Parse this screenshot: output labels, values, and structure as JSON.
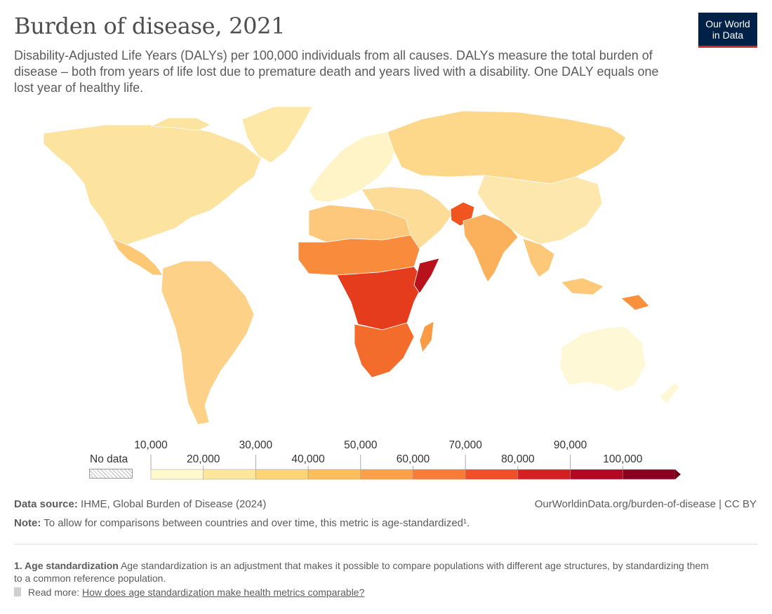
{
  "header": {
    "title": "Burden of disease, 2021",
    "subtitle": "Disability-Adjusted Life Years (DALYs) per 100,000 individuals from all causes. DALYs measure the total burden of disease – both from years of life lost due to premature death and years lived with a disability. One DALY equals one lost year of healthy life.",
    "logo_line1": "Our World",
    "logo_line2": "in Data"
  },
  "legend": {
    "no_data_label": "No data",
    "no_data_color": "#ffffff",
    "thresholds": [
      10000,
      20000,
      30000,
      40000,
      50000,
      60000,
      70000,
      80000,
      90000,
      100000
    ],
    "threshold_labels": [
      "10,000",
      "20,000",
      "30,000",
      "40,000",
      "50,000",
      "60,000",
      "70,000",
      "80,000",
      "90,000",
      "100,000"
    ],
    "colors": [
      "#fffacd",
      "#fee69a",
      "#fdd575",
      "#fdbe5b",
      "#fca14a",
      "#f87c36",
      "#f04f27",
      "#d41f23",
      "#b30724",
      "#8b001f"
    ],
    "arrow_color": "#6c0015"
  },
  "map_colors": {
    "ocean": "#ffffff",
    "north_america": "#fde3a0",
    "greenland": "#fde8a8",
    "central_america": "#fdc874",
    "south_america": "#fdd187",
    "europe": "#fff4c8",
    "russia": "#fdd78a",
    "middle_east": "#fddc98",
    "afghanistan": "#f0541f",
    "south_asia": "#fbb05c",
    "china": "#fde7ad",
    "southeast_asia": "#fdc878",
    "north_africa": "#fdc87c",
    "sahel": "#f88c3c",
    "central_africa": "#e43c1c",
    "somalia": "#b8121c",
    "southern_africa": "#f36c2c",
    "madagascar": "#fa9a44",
    "australia": "#fff8d6",
    "papua": "#f8903e"
  },
  "footer": {
    "source_label": "Data source:",
    "source_text": "IHME, Global Burden of Disease (2024)",
    "site": "OurWorldinData.org/burden-of-disease | CC BY",
    "note_label": "Note:",
    "note_text": "To allow for comparisons between countries and over time, this metric is age-standardized¹.",
    "footnote_label": "1. Age standardization",
    "footnote_text": "Age standardization is an adjustment that makes it possible to compare populations with different age structures, by standardizing them to a common reference population.",
    "readmore_label": "Read more:",
    "readmore_link": "How does age standardization make health metrics comparable?"
  }
}
